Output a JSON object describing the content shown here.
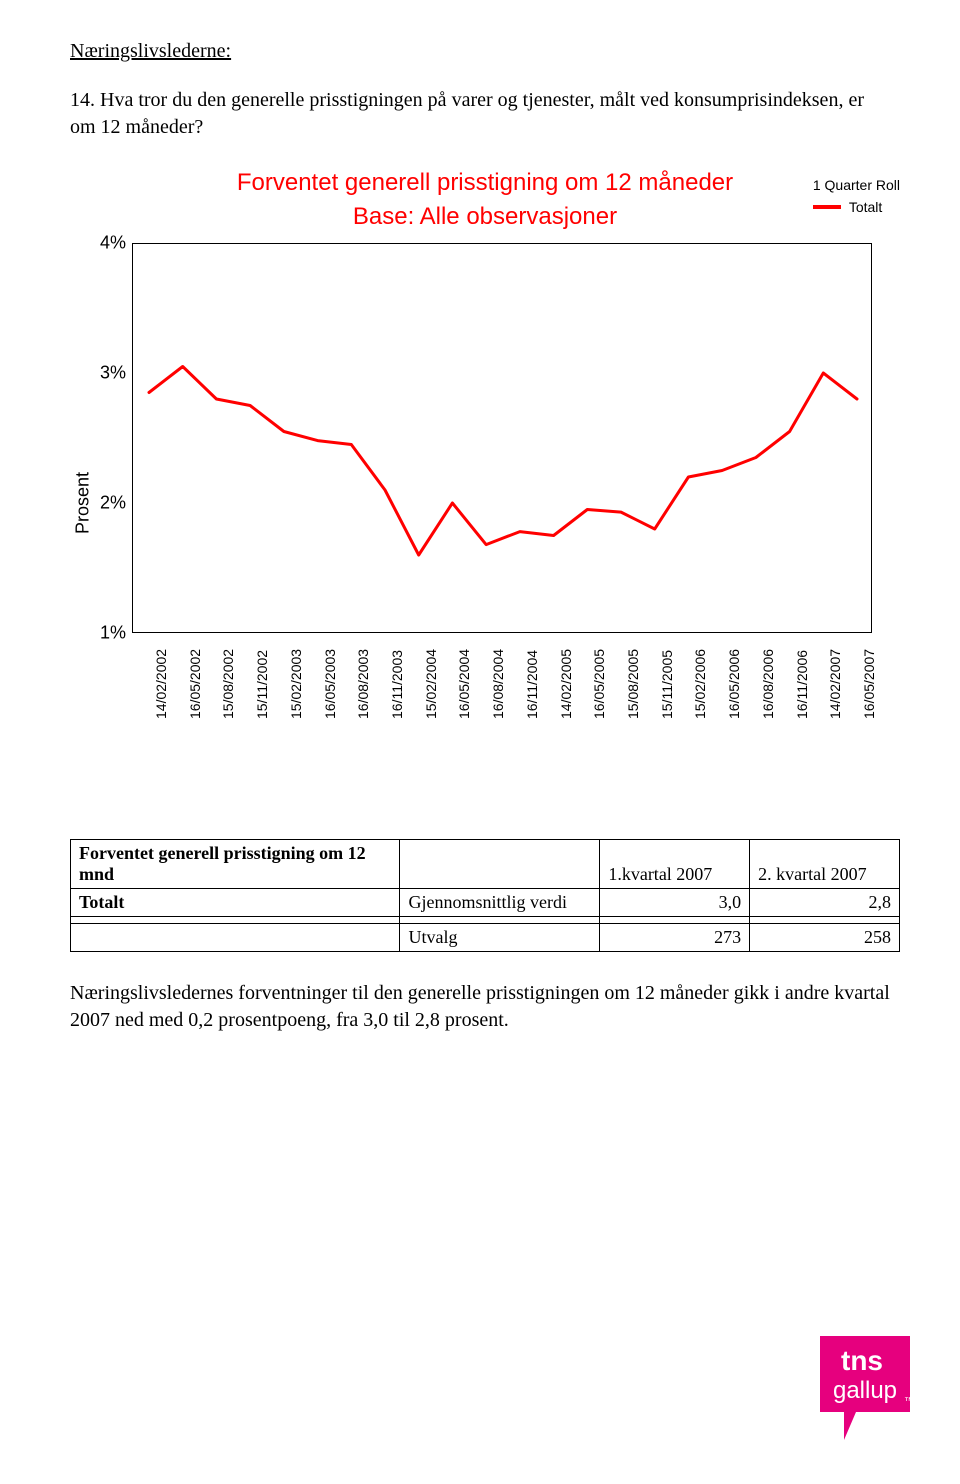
{
  "section_label": "Næringslivslederne:",
  "question": "14. Hva tror du den generelle prisstigningen på varer og tjenester, målt ved konsumprisindeksen, er om 12 måneder?",
  "chart": {
    "type": "line",
    "title": "Forventet generell prisstigning om 12 måneder",
    "subtitle": "Base: Alle observasjoner",
    "legend_header": "1 Quarter Roll",
    "legend_series": "Totalt",
    "y_axis_label": "Prosent",
    "ylim": [
      1,
      4
    ],
    "y_ticks": [
      "4%",
      "3%",
      "2%",
      "1%"
    ],
    "x_labels": [
      "14/02/2002",
      "16/05/2002",
      "15/08/2002",
      "15/11/2002",
      "15/02/2003",
      "16/05/2003",
      "16/08/2003",
      "16/11/2003",
      "15/02/2004",
      "16/05/2004",
      "16/08/2004",
      "16/11/2004",
      "14/02/2005",
      "16/05/2005",
      "15/08/2005",
      "15/11/2005",
      "15/02/2006",
      "16/05/2006",
      "16/08/2006",
      "16/11/2006",
      "14/02/2007",
      "16/05/2007"
    ],
    "values": [
      2.85,
      3.05,
      2.8,
      2.75,
      2.55,
      2.48,
      2.45,
      2.1,
      1.6,
      2.0,
      1.68,
      1.78,
      1.75,
      1.95,
      1.93,
      1.8,
      2.2,
      2.25,
      2.35,
      2.55,
      3.0,
      2.8
    ],
    "line_color": "#ff0000",
    "line_width": 3,
    "title_fontsize": 24,
    "title_color": "#ff0000",
    "label_fontsize": 18,
    "tick_fontsize": 18,
    "xlabel_fontsize": 14,
    "background_color": "#ffffff",
    "border_color": "#000000"
  },
  "table": {
    "row1_label": "Forventet generell prisstigning om 12 mnd",
    "col_headers": [
      "1.kvartal 2007",
      "2. kvartal 2007"
    ],
    "row2_label": "Totalt",
    "row2_desc": "Gjennomsnittlig verdi",
    "row2_vals": [
      "3,0",
      "2,8"
    ],
    "row3_label": "Utvalg",
    "row3_vals": [
      "273",
      "258"
    ]
  },
  "body_text": "Næringslivsledernes forventninger til den generelle prisstigningen om 12 måneder gikk i andre kvartal 2007 ned med 0,2 prosentpoeng, fra 3,0 til 2,8 prosent.",
  "logo": {
    "brand_top": "tns",
    "brand_bottom": "gallup",
    "color": "#e6007e",
    "text_color": "#ffffff",
    "tm": "™"
  }
}
